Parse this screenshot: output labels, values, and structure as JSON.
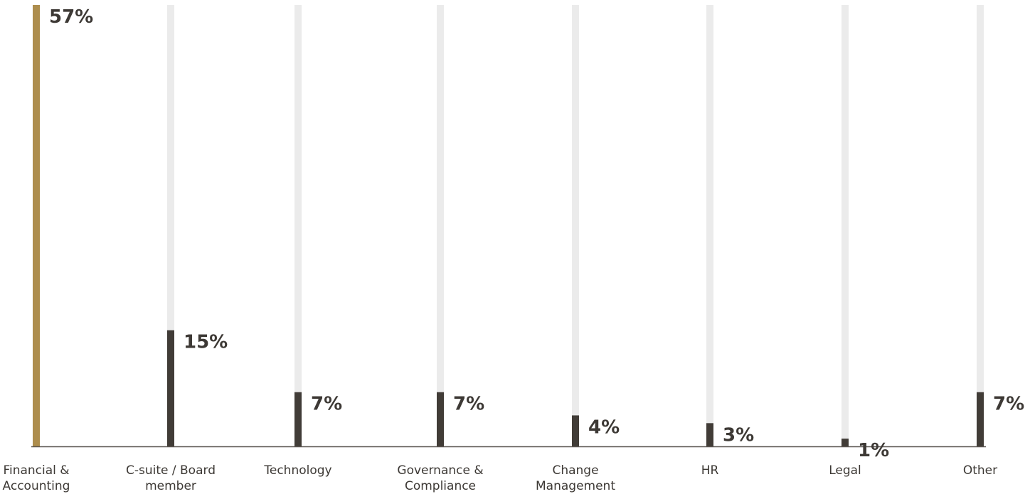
{
  "chart_data": {
    "type": "bar",
    "categories": [
      [
        "Financial &",
        "Accounting"
      ],
      [
        "C-suite / Board",
        "member"
      ],
      [
        "Technology"
      ],
      [
        "Governance &",
        "Compliance"
      ],
      [
        "Change",
        "Management"
      ],
      [
        "HR"
      ],
      [
        "Legal"
      ],
      [
        "Other"
      ]
    ],
    "values": [
      57,
      15,
      7,
      7,
      4,
      3,
      1,
      7
    ],
    "value_labels": [
      "57%",
      "15%",
      "7%",
      "7%",
      "4%",
      "3%",
      "1%",
      "7%"
    ],
    "ylim": [
      0,
      57
    ],
    "title": "",
    "xlabel": "",
    "ylabel": "",
    "grid": false,
    "legend": "none",
    "highlight_index": 0,
    "colors": {
      "highlight": "#ad8d4d",
      "bar": "#413c37",
      "track": "#ebebeb",
      "axis": "#5a5550",
      "text": "#3d3935"
    }
  }
}
